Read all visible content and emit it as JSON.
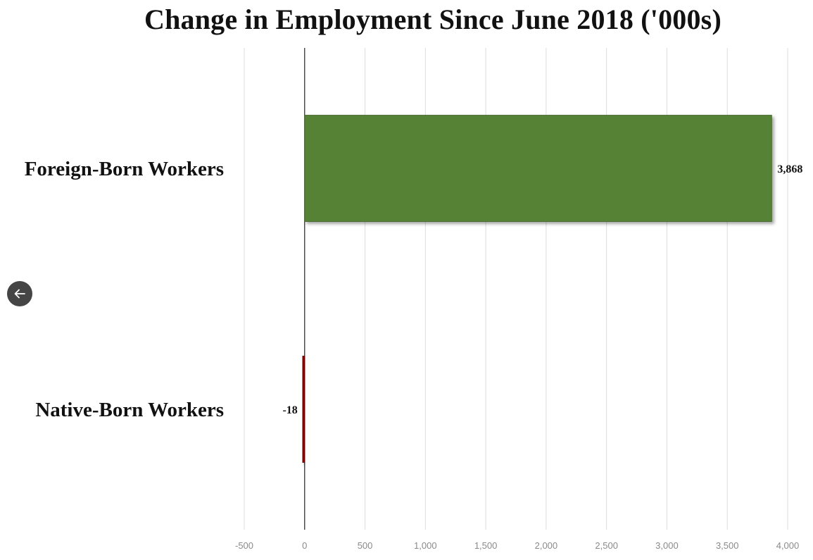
{
  "chart_data": {
    "type": "bar",
    "orientation": "horizontal",
    "title": "Change in Employment Since June 2018 ('000s)",
    "xlabel": "",
    "ylabel": "",
    "categories": [
      "Foreign-Born Workers",
      "Native-Born Workers"
    ],
    "values": [
      3868,
      -18
    ],
    "data_labels": [
      "3,868",
      "-18"
    ],
    "colors": [
      "#548235",
      "#8B0000"
    ],
    "xlim": [
      -500,
      4000
    ],
    "xticks": [
      -500,
      0,
      500,
      1000,
      1500,
      2000,
      2500,
      3000,
      3500,
      4000
    ],
    "xtick_labels": [
      "-500",
      "0",
      "500",
      "1,000",
      "1,500",
      "2,000",
      "2,500",
      "3,000",
      "3,500",
      "4,000"
    ],
    "grid": "vertical",
    "legend": "none"
  },
  "controls": {
    "back_icon": "arrow-left-icon"
  }
}
